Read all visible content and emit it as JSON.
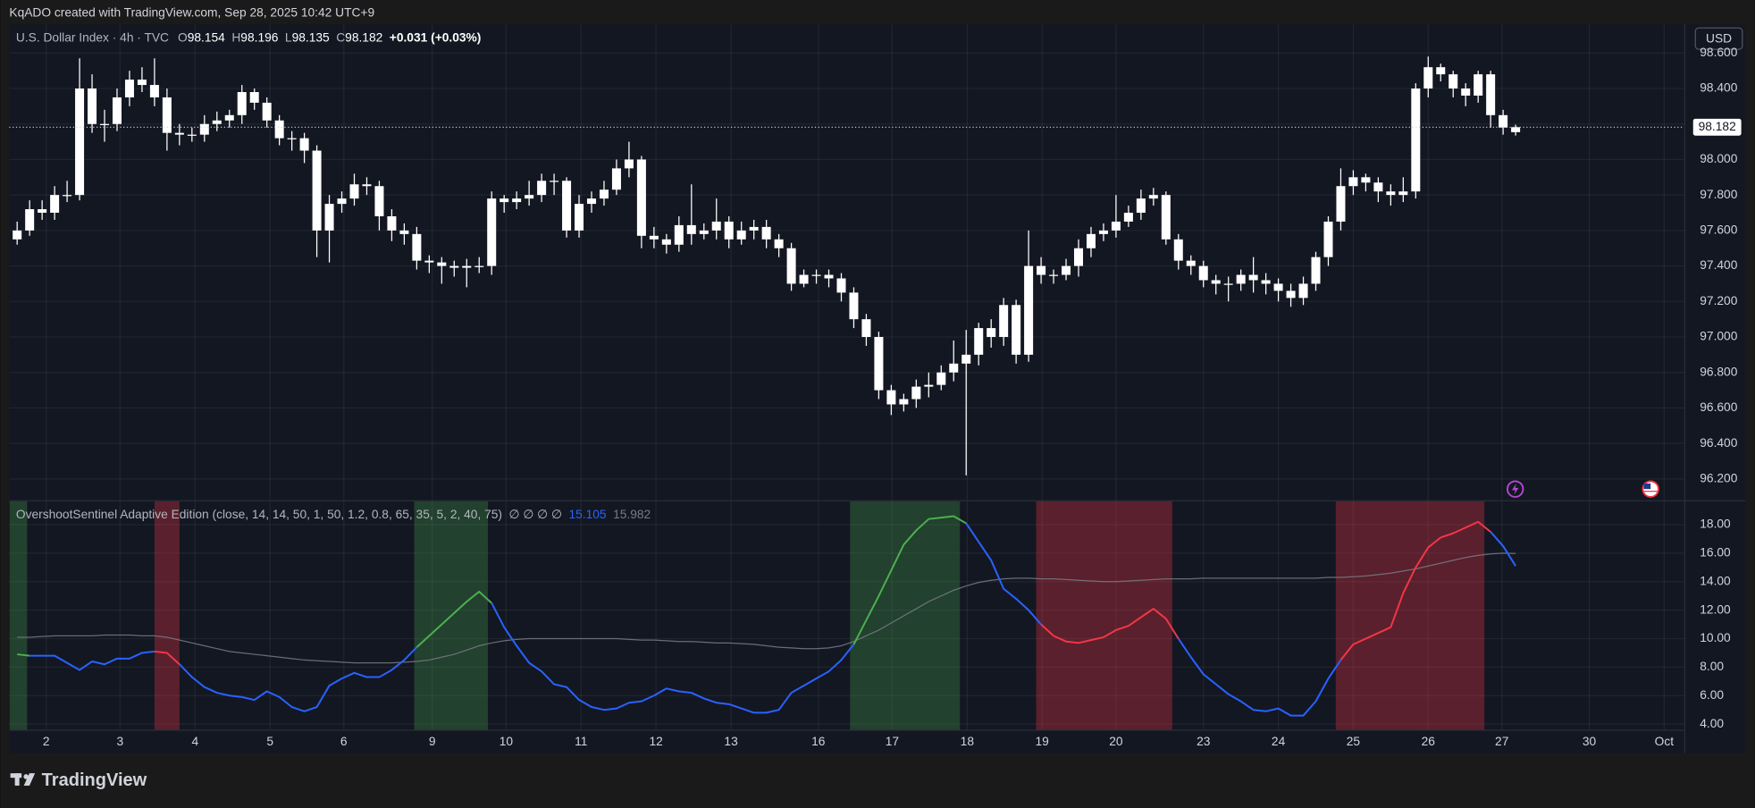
{
  "header": {
    "caption": "KqADO created with TradingView.com, Sep 28, 2025 10:42 UTC+9",
    "brand": "TradingView"
  },
  "chart_data": [
    {
      "type": "candlestick",
      "title": "U.S. Dollar Index · 4h · TVC",
      "ohlc_prefixes": [
        "O",
        "H",
        "L",
        "C"
      ],
      "change": "+0.031 (+0.03%)",
      "currency": "USD",
      "color": "#ffffff",
      "grid": true,
      "xlim": [
        -0.63,
        133.5
      ],
      "ylim": [
        96.08,
        98.76
      ],
      "yticks": [
        {
          "value": 96.2,
          "label": "96.200"
        },
        {
          "value": 96.4,
          "label": "96.400"
        },
        {
          "value": 96.6,
          "label": "96.600"
        },
        {
          "value": 96.8,
          "label": "96.800"
        },
        {
          "value": 97.0,
          "label": "97.000"
        },
        {
          "value": 97.2,
          "label": "97.200"
        },
        {
          "value": 97.4,
          "label": "97.400"
        },
        {
          "value": 97.6,
          "label": "97.600"
        },
        {
          "value": 97.8,
          "label": "97.800"
        },
        {
          "value": 98.0,
          "label": "98.000"
        },
        {
          "value": 98.2,
          "label": "98.200"
        },
        {
          "value": 98.4,
          "label": "98.400"
        },
        {
          "value": 98.6,
          "label": "98.600"
        }
      ],
      "open": [
        97.55,
        97.6,
        97.72,
        97.7,
        97.8,
        97.8,
        98.4,
        98.2,
        98.2,
        98.35,
        98.45,
        98.42,
        98.35,
        98.15,
        98.14,
        98.14,
        98.2,
        98.22,
        98.25,
        98.38,
        98.32,
        98.22,
        98.12,
        98.12,
        98.05,
        97.6,
        97.75,
        97.78,
        97.86,
        97.85,
        97.68,
        97.6,
        97.58,
        97.43,
        97.42,
        97.4,
        97.39,
        97.4,
        97.4,
        97.78,
        97.76,
        97.78,
        97.8,
        97.88,
        97.88,
        97.6,
        97.75,
        97.78,
        97.83,
        97.95,
        98.0,
        97.57,
        97.55,
        97.52,
        97.63,
        97.58,
        97.6,
        97.65,
        97.55,
        97.6,
        97.62,
        97.55,
        97.5,
        97.3,
        97.35,
        97.35,
        97.33,
        97.25,
        97.1,
        97.0,
        96.7,
        96.62,
        96.65,
        96.72,
        96.73,
        96.8,
        96.85,
        96.9,
        97.05,
        97.0,
        97.18,
        96.9,
        97.4,
        97.35,
        97.35,
        97.4,
        97.5,
        97.58,
        97.6,
        97.65,
        97.7,
        97.78,
        97.8,
        97.55,
        97.43,
        97.4,
        97.32,
        97.3,
        97.3,
        97.35,
        97.32,
        97.3,
        97.26,
        97.22,
        97.3,
        97.45,
        97.65,
        97.85,
        97.9,
        97.87,
        97.82,
        97.8,
        97.82,
        98.4,
        98.52,
        98.48,
        98.4,
        98.36,
        98.48,
        98.25,
        98.154
      ],
      "high": [
        97.65,
        97.77,
        97.77,
        97.85,
        97.88,
        98.57,
        98.48,
        98.28,
        98.4,
        98.5,
        98.52,
        98.57,
        98.4,
        98.2,
        98.18,
        98.25,
        98.27,
        98.28,
        98.42,
        98.4,
        98.35,
        98.25,
        98.16,
        98.15,
        98.08,
        97.8,
        97.82,
        97.92,
        97.9,
        97.88,
        97.72,
        97.64,
        97.62,
        97.46,
        97.45,
        97.43,
        97.44,
        97.45,
        97.82,
        97.8,
        97.82,
        97.88,
        97.92,
        97.92,
        97.9,
        97.8,
        97.82,
        97.88,
        98.0,
        98.1,
        98.02,
        97.62,
        97.58,
        97.68,
        97.86,
        97.64,
        97.78,
        97.68,
        97.65,
        97.66,
        97.66,
        97.58,
        97.53,
        97.38,
        97.38,
        97.38,
        97.36,
        97.28,
        97.13,
        97.03,
        96.73,
        96.68,
        96.76,
        96.8,
        96.84,
        96.98,
        97.04,
        97.08,
        97.1,
        97.22,
        97.21,
        97.6,
        97.45,
        97.38,
        97.44,
        97.55,
        97.62,
        97.64,
        97.8,
        97.74,
        97.83,
        97.84,
        97.82,
        97.58,
        97.46,
        97.43,
        97.35,
        97.34,
        97.38,
        97.45,
        97.36,
        97.33,
        97.3,
        97.34,
        97.48,
        97.68,
        97.95,
        97.94,
        97.92,
        97.9,
        97.86,
        97.9,
        98.43,
        98.58,
        98.54,
        98.5,
        98.43,
        98.5,
        98.5,
        98.28,
        98.196
      ],
      "low": [
        97.52,
        97.57,
        97.66,
        97.66,
        97.76,
        97.77,
        98.15,
        98.1,
        98.16,
        98.3,
        98.38,
        98.3,
        98.05,
        98.08,
        98.1,
        98.1,
        98.16,
        98.18,
        98.2,
        98.28,
        98.18,
        98.08,
        98.05,
        97.98,
        97.45,
        97.42,
        97.7,
        97.74,
        97.8,
        97.6,
        97.54,
        97.52,
        97.38,
        97.36,
        97.3,
        97.34,
        97.28,
        97.36,
        97.35,
        97.7,
        97.72,
        97.74,
        97.76,
        97.8,
        97.56,
        97.56,
        97.7,
        97.74,
        97.8,
        97.9,
        97.5,
        97.5,
        97.47,
        97.48,
        97.52,
        97.55,
        97.55,
        97.5,
        97.52,
        97.55,
        97.5,
        97.45,
        97.26,
        97.28,
        97.3,
        97.28,
        97.2,
        97.05,
        96.95,
        96.65,
        96.56,
        96.58,
        96.6,
        96.66,
        96.7,
        96.75,
        96.22,
        96.84,
        96.94,
        96.95,
        96.85,
        96.86,
        97.3,
        97.3,
        97.32,
        97.34,
        97.45,
        97.54,
        97.56,
        97.62,
        97.66,
        97.74,
        97.52,
        97.38,
        97.35,
        97.28,
        97.24,
        97.2,
        97.26,
        97.25,
        97.24,
        97.2,
        97.17,
        97.18,
        97.26,
        97.4,
        97.6,
        97.8,
        97.82,
        97.76,
        97.74,
        97.76,
        97.78,
        98.35,
        98.44,
        98.35,
        98.3,
        98.32,
        98.18,
        98.14,
        98.135
      ],
      "close": [
        97.6,
        97.72,
        97.7,
        97.8,
        97.8,
        98.4,
        98.2,
        98.2,
        98.35,
        98.45,
        98.42,
        98.35,
        98.15,
        98.14,
        98.14,
        98.2,
        98.22,
        98.25,
        98.38,
        98.32,
        98.22,
        98.12,
        98.12,
        98.05,
        97.6,
        97.75,
        97.78,
        97.86,
        97.85,
        97.68,
        97.6,
        97.58,
        97.43,
        97.42,
        97.4,
        97.39,
        97.4,
        97.4,
        97.78,
        97.76,
        97.78,
        97.8,
        97.88,
        97.88,
        97.6,
        97.75,
        97.78,
        97.83,
        97.95,
        98.0,
        97.57,
        97.55,
        97.52,
        97.63,
        97.58,
        97.6,
        97.65,
        97.55,
        97.6,
        97.62,
        97.55,
        97.5,
        97.3,
        97.35,
        97.35,
        97.33,
        97.25,
        97.1,
        97.0,
        96.7,
        96.62,
        96.65,
        96.72,
        96.73,
        96.8,
        96.85,
        96.9,
        97.05,
        97.0,
        97.18,
        96.9,
        97.4,
        97.35,
        97.35,
        97.4,
        97.5,
        97.58,
        97.6,
        97.65,
        97.7,
        97.78,
        97.8,
        97.55,
        97.43,
        97.4,
        97.32,
        97.3,
        97.3,
        97.35,
        97.32,
        97.3,
        97.26,
        97.22,
        97.3,
        97.45,
        97.65,
        97.85,
        97.9,
        97.87,
        97.82,
        97.8,
        97.82,
        98.4,
        98.52,
        98.48,
        98.4,
        98.36,
        98.48,
        98.25,
        98.18,
        98.182
      ]
    },
    {
      "type": "line",
      "title": "OvershootSentinel Adaptive Edition (close, 14, 14, 50, 1, 50, 1.2, 0.8, 65, 35, 5, 2, 40, 75)",
      "flags": "∅ ∅ ∅ ∅",
      "grid": true,
      "xlim": [
        -0.63,
        133.5
      ],
      "ylim": [
        3.61,
        19.64
      ],
      "yticks": [
        {
          "value": 4,
          "label": "4.00"
        },
        {
          "value": 6,
          "label": "6.00"
        },
        {
          "value": 8,
          "label": "8.00"
        },
        {
          "value": 10,
          "label": "10.00"
        },
        {
          "value": 12,
          "label": "12.00"
        },
        {
          "value": 14,
          "label": "14.00"
        },
        {
          "value": 16,
          "label": "16.00"
        },
        {
          "value": 18,
          "label": "18.00"
        }
      ],
      "xticks": [
        {
          "value": 2.33,
          "label": "2"
        },
        {
          "value": 8.24,
          "label": "3"
        },
        {
          "value": 14.25,
          "label": "4"
        },
        {
          "value": 20.25,
          "label": "5"
        },
        {
          "value": 26.16,
          "label": "6"
        },
        {
          "value": 33.24,
          "label": "9"
        },
        {
          "value": 39.16,
          "label": "10"
        },
        {
          "value": 45.16,
          "label": "11"
        },
        {
          "value": 51.16,
          "label": "12"
        },
        {
          "value": 57.17,
          "label": "13"
        },
        {
          "value": 64.16,
          "label": "16"
        },
        {
          "value": 70.07,
          "label": "17"
        },
        {
          "value": 76.08,
          "label": "18"
        },
        {
          "value": 82.08,
          "label": "19"
        },
        {
          "value": 88.0,
          "label": "20"
        },
        {
          "value": 95.0,
          "label": "23"
        },
        {
          "value": 101.0,
          "label": "24"
        },
        {
          "value": 107.0,
          "label": "25"
        },
        {
          "value": 113.0,
          "label": "26"
        },
        {
          "value": 118.9,
          "label": "27"
        },
        {
          "value": 125.9,
          "label": "30"
        },
        {
          "value": 131.9,
          "label": "Oct"
        }
      ],
      "zones": [
        {
          "start": -0.6,
          "end": 0.8,
          "fill": "rgba(76,175,80,0.28)",
          "line_color": "#4caf50"
        },
        {
          "start": 11.0,
          "end": 13.0,
          "fill": "rgba(242,54,69,0.32)",
          "line_color": "#f23645"
        },
        {
          "start": 31.8,
          "end": 37.7,
          "fill": "rgba(76,175,80,0.28)",
          "line_color": "#4caf50"
        },
        {
          "start": 66.7,
          "end": 75.5,
          "fill": "rgba(76,175,80,0.28)",
          "line_color": "#4caf50"
        },
        {
          "start": 81.6,
          "end": 92.5,
          "fill": "rgba(242,54,69,0.32)",
          "line_color": "#f23645"
        },
        {
          "start": 105.6,
          "end": 117.5,
          "fill": "rgba(242,54,69,0.32)",
          "line_color": "#f23645"
        }
      ],
      "series": [
        {
          "color": "#2962ff",
          "values": [
            8.9,
            8.8,
            8.8,
            8.8,
            8.3,
            7.8,
            8.4,
            8.2,
            8.6,
            8.6,
            9.0,
            9.1,
            9.0,
            8.2,
            7.3,
            6.6,
            6.2,
            6.0,
            5.9,
            5.7,
            6.3,
            5.9,
            5.2,
            4.9,
            5.2,
            6.7,
            7.2,
            7.6,
            7.3,
            7.3,
            7.8,
            8.5,
            9.4,
            10.2,
            11.0,
            11.8,
            12.6,
            13.3,
            12.5,
            10.8,
            9.5,
            8.3,
            7.7,
            6.8,
            6.6,
            5.7,
            5.2,
            5.0,
            5.1,
            5.5,
            5.6,
            6.0,
            6.5,
            6.3,
            6.2,
            5.8,
            5.5,
            5.4,
            5.1,
            4.8,
            4.8,
            5.0,
            6.2,
            6.7,
            7.2,
            7.7,
            8.5,
            9.6,
            11.3,
            13.0,
            14.8,
            16.6,
            17.6,
            18.4,
            18.5,
            18.6,
            18.1,
            16.8,
            15.5,
            13.5,
            12.8,
            12.0,
            11.0,
            10.2,
            9.8,
            9.7,
            9.9,
            10.1,
            10.6,
            10.9,
            11.5,
            12.1,
            11.4,
            10.0,
            8.7,
            7.5,
            6.8,
            6.1,
            5.6,
            5.0,
            4.9,
            5.1,
            4.6,
            4.6,
            5.6,
            7.2,
            8.5,
            9.6,
            10.0,
            10.4,
            10.8,
            13.2,
            15.0,
            16.4,
            17.1,
            17.4,
            17.8,
            18.2,
            17.5,
            16.5,
            15.105
          ]
        },
        {
          "color": "#787b86",
          "values": [
            10.1,
            10.1,
            10.15,
            10.2,
            10.2,
            10.2,
            10.2,
            10.25,
            10.25,
            10.25,
            10.2,
            10.2,
            10.1,
            9.9,
            9.7,
            9.5,
            9.3,
            9.1,
            9.0,
            8.9,
            8.8,
            8.7,
            8.6,
            8.5,
            8.45,
            8.4,
            8.35,
            8.3,
            8.3,
            8.3,
            8.3,
            8.35,
            8.4,
            8.5,
            8.7,
            8.9,
            9.2,
            9.5,
            9.7,
            9.85,
            9.95,
            10.0,
            10.0,
            10.0,
            10.0,
            10.0,
            10.0,
            10.0,
            10.0,
            9.95,
            9.9,
            9.9,
            9.85,
            9.8,
            9.8,
            9.75,
            9.7,
            9.7,
            9.65,
            9.6,
            9.5,
            9.4,
            9.35,
            9.3,
            9.3,
            9.35,
            9.5,
            9.8,
            10.2,
            10.6,
            11.1,
            11.6,
            12.1,
            12.6,
            13.0,
            13.4,
            13.7,
            13.95,
            14.1,
            14.2,
            14.25,
            14.25,
            14.2,
            14.2,
            14.15,
            14.1,
            14.05,
            14.0,
            14.0,
            14.05,
            14.1,
            14.15,
            14.2,
            14.2,
            14.2,
            14.25,
            14.25,
            14.25,
            14.25,
            14.25,
            14.25,
            14.25,
            14.25,
            14.25,
            14.25,
            14.3,
            14.3,
            14.35,
            14.4,
            14.5,
            14.6,
            14.75,
            14.9,
            15.1,
            15.3,
            15.5,
            15.7,
            15.85,
            15.95,
            16.0,
            15.982
          ]
        }
      ]
    }
  ]
}
